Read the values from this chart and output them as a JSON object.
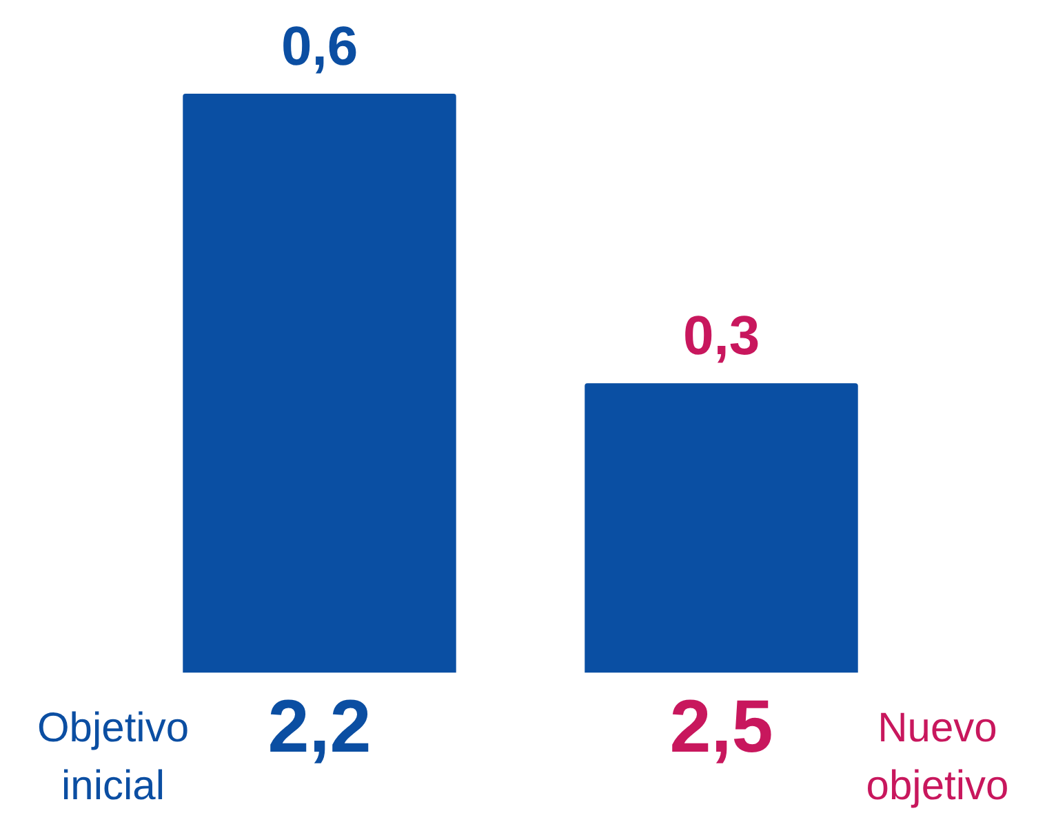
{
  "chart_data": {
    "type": "bar",
    "categories": [
      "2,2",
      "2,5"
    ],
    "values": [
      0.6,
      0.3
    ],
    "color": "#0a4fa3",
    "value_labels": [
      "0,6",
      "0,3"
    ],
    "annotations": [
      "Objetivo inicial",
      "Nuevo objetivo"
    ],
    "tick_labels": "x",
    "grid": false,
    "legend": false
  }
}
